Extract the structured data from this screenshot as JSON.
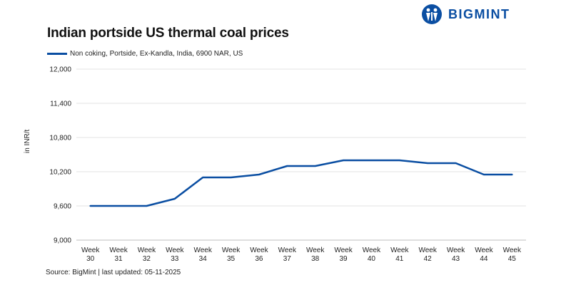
{
  "brand": {
    "name": "BIGMINT",
    "color": "#0a4ea2"
  },
  "chart_data": {
    "type": "line",
    "title": "Indian portside US thermal coal prices",
    "ylabel": "in INR/t",
    "xlabel": "",
    "ylim": [
      9000,
      12000
    ],
    "yticks": [
      9000,
      9600,
      10200,
      10800,
      11400,
      12000
    ],
    "ytick_labels": [
      "9,000",
      "9,600",
      "10,200",
      "10,800",
      "11,400",
      "12,000"
    ],
    "grid": true,
    "legend_position": "top-left",
    "categories": [
      [
        "Week",
        "30"
      ],
      [
        "Week",
        "31"
      ],
      [
        "Week",
        "32"
      ],
      [
        "Week",
        "33"
      ],
      [
        "Week",
        "34"
      ],
      [
        "Week",
        "35"
      ],
      [
        "Week",
        "36"
      ],
      [
        "Week",
        "37"
      ],
      [
        "Week",
        "38"
      ],
      [
        "Week",
        "39"
      ],
      [
        "Week",
        "40"
      ],
      [
        "Week",
        "41"
      ],
      [
        "Week",
        "42"
      ],
      [
        "Week",
        "43"
      ],
      [
        "Week",
        "44"
      ],
      [
        "Week",
        "45"
      ]
    ],
    "series": [
      {
        "name": "Non coking, Portside, Ex-Kandla, India, 6900 NAR, US",
        "color": "#0a4ea2",
        "values": [
          9600,
          9600,
          9600,
          9725,
          10100,
          10100,
          10150,
          10300,
          10300,
          10400,
          10400,
          10400,
          10350,
          10350,
          10150,
          10150
        ]
      }
    ]
  },
  "source": "Source: BigMint | last updated: 05-11-2025"
}
